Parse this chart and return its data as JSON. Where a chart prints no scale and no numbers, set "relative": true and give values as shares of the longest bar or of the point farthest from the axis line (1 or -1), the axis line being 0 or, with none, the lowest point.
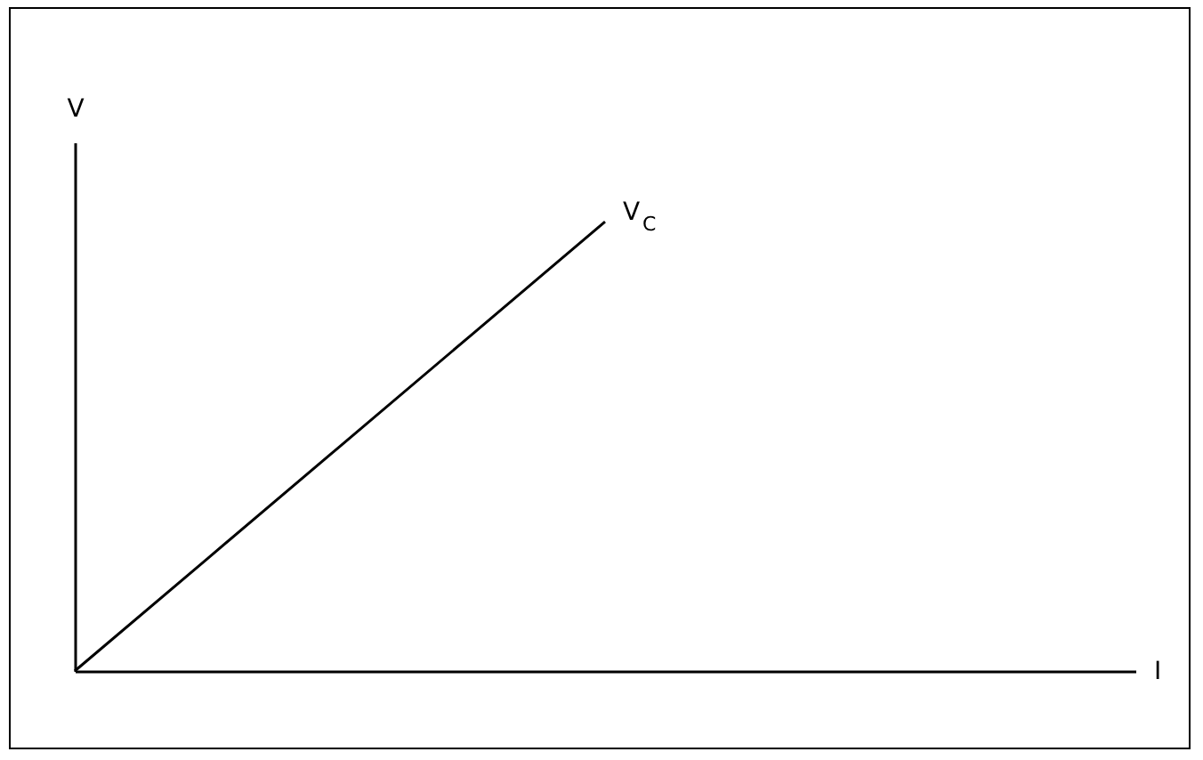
{
  "chart_data": {
    "type": "line",
    "relative": true,
    "xlabel": "I",
    "ylabel": "V",
    "categories": [
      null,
      null,
      null,
      null,
      null,
      null,
      null,
      null,
      null
    ],
    "series": [
      {
        "name": "V$_{C}$",
        "color": "#000000",
        "values": [
          0,
          0.25,
          0.5,
          0.75,
          1,
          null,
          null,
          null,
          null
        ]
      }
    ]
  }
}
